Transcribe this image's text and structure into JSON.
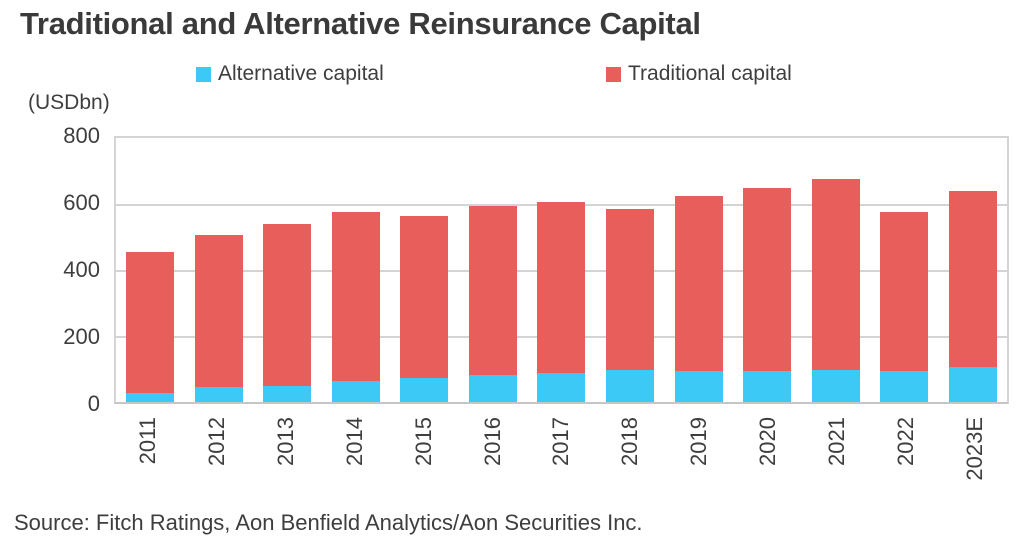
{
  "title": "Traditional and Alternative Reinsurance Capital",
  "unit_label": "(USDbn)",
  "source": "Source: Fitch Ratings, Aon Benfield Analytics/Aon Securities Inc.",
  "colors": {
    "alternative": "#3cc9f5",
    "traditional": "#e85e5a",
    "gridline": "#d4d4d4",
    "text": "#3e3e3e"
  },
  "legend": {
    "items": [
      {
        "label": "Alternative capital",
        "color": "#3cc9f5"
      },
      {
        "label": "Traditional capital",
        "color": "#e85e5a"
      }
    ]
  },
  "chart_data": {
    "type": "bar",
    "stacked": true,
    "title": "Traditional and Alternative Reinsurance Capital",
    "ylabel": "(USDbn)",
    "xlabel": "",
    "ylim": [
      0,
      800
    ],
    "yticks": [
      0,
      200,
      400,
      600,
      800
    ],
    "grid": true,
    "legend_position": "top",
    "categories": [
      "2011",
      "2012",
      "2013",
      "2014",
      "2015",
      "2016",
      "2017",
      "2018",
      "2019",
      "2020",
      "2021",
      "2022",
      "2023E"
    ],
    "series": [
      {
        "name": "Alternative capital",
        "color": "#3cc9f5",
        "values": [
          28,
          44,
          50,
          64,
          72,
          81,
          89,
          97,
          95,
          94,
          97,
          93,
          105
        ]
      },
      {
        "name": "Traditional capital",
        "color": "#e85e5a",
        "values": [
          427,
          461,
          490,
          511,
          493,
          514,
          516,
          488,
          530,
          556,
          578,
          482,
          535
        ]
      }
    ],
    "totals": [
      455,
      505,
      540,
      575,
      565,
      595,
      605,
      585,
      625,
      650,
      675,
      575,
      640
    ]
  }
}
